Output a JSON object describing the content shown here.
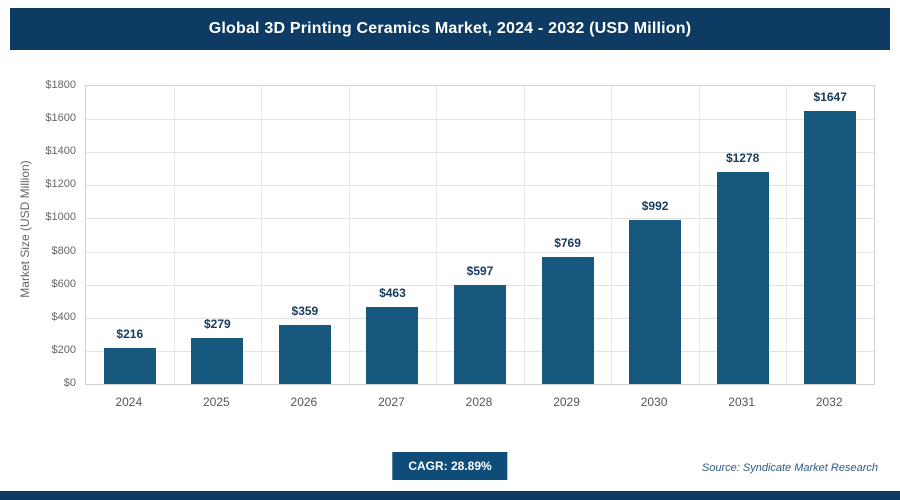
{
  "header": {
    "title": "Global 3D Printing Ceramics Market, 2024 - 2032 (USD Million)"
  },
  "chart_data": {
    "type": "bar",
    "title": "Global 3D Printing Ceramics Market, 2024 - 2032 (USD Million)",
    "categories": [
      "2024",
      "2025",
      "2026",
      "2027",
      "2028",
      "2029",
      "2030",
      "2031",
      "2032"
    ],
    "values": [
      216,
      279,
      359,
      463,
      597,
      769,
      992,
      1278,
      1647
    ],
    "value_labels": [
      "$216",
      "$279",
      "$359",
      "$463",
      "$597",
      "$769",
      "$992",
      "$1278",
      "$1647"
    ],
    "xlabel": "",
    "ylabel": "Market Size (USD Million)",
    "ylim": [
      0,
      1800
    ],
    "ytick_step": 200,
    "yticks": [
      "$0",
      "$200",
      "$400",
      "$600",
      "$800",
      "$1000",
      "$1200",
      "$1400",
      "$1600",
      "$1800"
    ],
    "grid": "on",
    "legend": "none",
    "bar_color": "#17587e"
  },
  "footer": {
    "cagr_label": "CAGR: 28.89%",
    "source": "Source: Syndicate Market Research"
  }
}
